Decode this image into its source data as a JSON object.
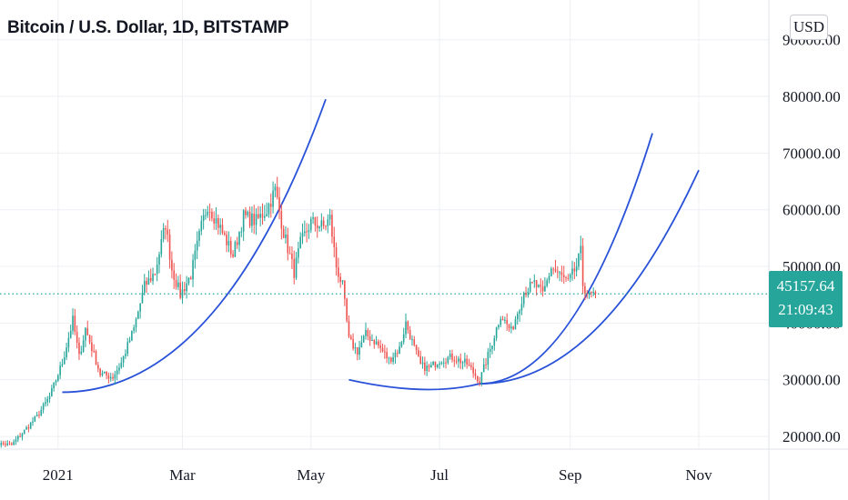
{
  "header": {
    "title": "Bitcoin / U.S. Dollar, 1D, BITSTAMP"
  },
  "currency_button": {
    "label": "USD"
  },
  "last_price": {
    "value": "45157.64",
    "countdown": "21:09:43"
  },
  "colors": {
    "up": "#26a69a",
    "down": "#ef5350",
    "curve": "#2952d9",
    "grid": "#edeff3",
    "price_line": "#26a69a",
    "axis_text": "#131722"
  },
  "chart_data": {
    "type": "candlestick",
    "title": "Bitcoin / U.S. Dollar, 1D, BITSTAMP",
    "x_ticks": [
      {
        "label": "2021",
        "date": "2021-01-01"
      },
      {
        "label": "Mar",
        "date": "2021-03-01"
      },
      {
        "label": "May",
        "date": "2021-05-01"
      },
      {
        "label": "Jul",
        "date": "2021-07-01"
      },
      {
        "label": "Sep",
        "date": "2021-09-01"
      },
      {
        "label": "Nov",
        "date": "2021-11-01"
      }
    ],
    "y_ticks": [
      {
        "label": "20000.00",
        "value": 20000
      },
      {
        "label": "30000.00",
        "value": 30000
      },
      {
        "label": "40000.00",
        "value": 40000
      },
      {
        "label": "50000.00",
        "value": 50000
      },
      {
        "label": "60000.00",
        "value": 60000
      },
      {
        "label": "70000.00",
        "value": 70000
      },
      {
        "label": "80000.00",
        "value": 80000
      },
      {
        "label": "90000.00",
        "value": 90000
      }
    ],
    "ylim": [
      16000,
      93000
    ],
    "xlim": [
      "2020-12-01",
      "2021-11-20"
    ],
    "grid": true,
    "last_price": 45157.64,
    "close_path": [
      [
        "2020-12-01",
        18800
      ],
      [
        "2020-12-10",
        18500
      ],
      [
        "2020-12-16",
        21000
      ],
      [
        "2020-12-22",
        23500
      ],
      [
        "2020-12-28",
        27000
      ],
      [
        "2021-01-03",
        33000
      ],
      [
        "2021-01-08",
        40500
      ],
      [
        "2021-01-11",
        34000
      ],
      [
        "2021-01-14",
        39000
      ],
      [
        "2021-01-21",
        31000
      ],
      [
        "2021-01-27",
        30500
      ],
      [
        "2021-01-31",
        33000
      ],
      [
        "2021-02-06",
        39000
      ],
      [
        "2021-02-11",
        46500
      ],
      [
        "2021-02-16",
        49000
      ],
      [
        "2021-02-21",
        57500
      ],
      [
        "2021-02-24",
        49500
      ],
      [
        "2021-02-28",
        45000
      ],
      [
        "2021-03-05",
        48500
      ],
      [
        "2021-03-10",
        57000
      ],
      [
        "2021-03-13",
        61000
      ],
      [
        "2021-03-18",
        57500
      ],
      [
        "2021-03-25",
        52000
      ],
      [
        "2021-03-30",
        58800
      ],
      [
        "2021-04-05",
        58000
      ],
      [
        "2021-04-10",
        60000
      ],
      [
        "2021-04-14",
        63500
      ],
      [
        "2021-04-18",
        56000
      ],
      [
        "2021-04-23",
        49000
      ],
      [
        "2021-04-26",
        54000
      ],
      [
        "2021-05-01",
        57800
      ],
      [
        "2021-05-07",
        57000
      ],
      [
        "2021-05-10",
        58500
      ],
      [
        "2021-05-13",
        50000
      ],
      [
        "2021-05-16",
        46500
      ],
      [
        "2021-05-19",
        37000
      ],
      [
        "2021-05-23",
        35000
      ],
      [
        "2021-05-27",
        38000
      ],
      [
        "2021-06-01",
        36500
      ],
      [
        "2021-06-07",
        33500
      ],
      [
        "2021-06-12",
        35500
      ],
      [
        "2021-06-15",
        40000
      ],
      [
        "2021-06-19",
        35600
      ],
      [
        "2021-06-22",
        32500
      ],
      [
        "2021-06-26",
        32000
      ],
      [
        "2021-07-01",
        33500
      ],
      [
        "2021-07-07",
        34000
      ],
      [
        "2021-07-14",
        32800
      ],
      [
        "2021-07-20",
        29800
      ],
      [
        "2021-07-25",
        35400
      ],
      [
        "2021-07-30",
        41500
      ],
      [
        "2021-08-04",
        38500
      ],
      [
        "2021-08-10",
        45500
      ],
      [
        "2021-08-15",
        47000
      ],
      [
        "2021-08-19",
        45000
      ],
      [
        "2021-08-23",
        49800
      ],
      [
        "2021-08-27",
        48500
      ],
      [
        "2021-08-31",
        47100
      ],
      [
        "2021-09-04",
        50000
      ],
      [
        "2021-09-06",
        52500
      ],
      [
        "2021-09-07",
        46800
      ],
      [
        "2021-09-10",
        44800
      ],
      [
        "2021-09-13",
        45157.64
      ]
    ],
    "curves": [
      {
        "from": {
          "date": "2021-01-03",
          "value": 27800
        },
        "to": {
          "date": "2021-05-08",
          "value": 79500
        }
      },
      {
        "from": {
          "date": "2021-05-19",
          "value": 30000
        },
        "bottom": {
          "date": "2021-06-25",
          "value": 28300
        },
        "to": {
          "date": "2021-07-20",
          "value": 29300
        }
      },
      {
        "from": {
          "date": "2021-07-20",
          "value": 29300
        },
        "to": {
          "date": "2021-10-10",
          "value": 73500
        }
      },
      {
        "from": {
          "date": "2021-07-20",
          "value": 29300
        },
        "to": {
          "date": "2021-11-01",
          "value": 67000
        }
      }
    ]
  }
}
